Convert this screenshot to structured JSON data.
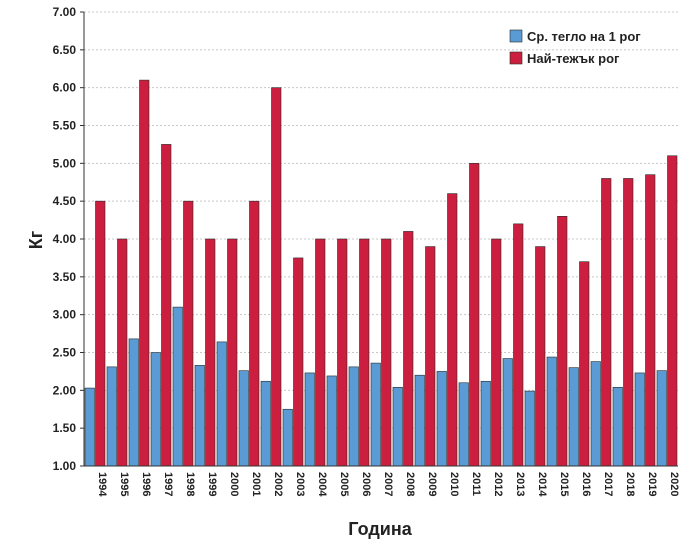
{
  "chart_data": {
    "type": "bar",
    "title": "",
    "xlabel": "Година",
    "ylabel": "Кг",
    "ylim": [
      1.0,
      7.0
    ],
    "y_ticks": [
      "1.00",
      "1.50",
      "2.00",
      "2.50",
      "3.00",
      "3.50",
      "4.00",
      "4.50",
      "5.00",
      "5.50",
      "6.00",
      "6.50",
      "7.00"
    ],
    "y_tick_values": [
      1.0,
      1.5,
      2.0,
      2.5,
      3.0,
      3.5,
      4.0,
      4.5,
      5.0,
      5.5,
      6.0,
      6.5,
      7.0
    ],
    "grid": true,
    "legend_position": "top-right",
    "categories": [
      "1994",
      "1995",
      "1996",
      "1997",
      "1998",
      "1999",
      "2000",
      "2001",
      "2002",
      "2003",
      "2004",
      "2005",
      "2006",
      "2007",
      "2008",
      "2009",
      "2010",
      "2011",
      "2012",
      "2013",
      "2014",
      "2015",
      "2016",
      "2017",
      "2018",
      "2019",
      "2020"
    ],
    "series": [
      {
        "name": "Ср. тегло на 1 рог",
        "color": "#5b9bd5",
        "values": [
          2.03,
          2.31,
          2.68,
          2.5,
          3.1,
          2.33,
          2.64,
          2.26,
          2.12,
          1.75,
          2.23,
          2.19,
          2.31,
          2.36,
          2.04,
          2.2,
          2.25,
          2.1,
          2.12,
          2.42,
          1.99,
          2.44,
          2.3,
          2.38,
          2.04,
          2.23,
          2.26
        ]
      },
      {
        "name": "Най-тежък рог",
        "color": "#cc1f3f",
        "values": [
          4.5,
          4.0,
          6.1,
          5.25,
          4.5,
          4.0,
          4.0,
          4.5,
          6.0,
          3.75,
          4.0,
          4.0,
          4.0,
          4.0,
          4.1,
          3.9,
          4.6,
          5.0,
          4.0,
          4.2,
          3.9,
          4.3,
          3.7,
          4.8,
          4.8,
          4.85,
          5.1
        ]
      }
    ]
  }
}
